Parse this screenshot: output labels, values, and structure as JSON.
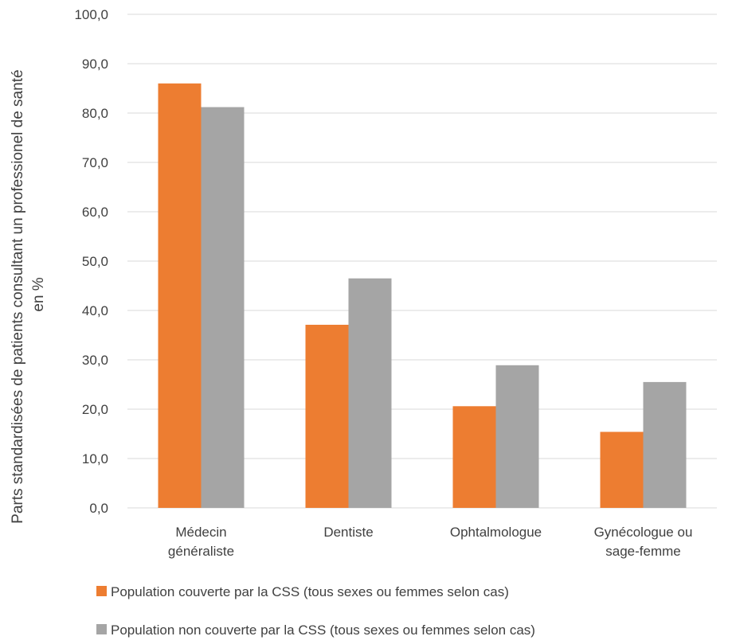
{
  "chart_data": {
    "type": "bar",
    "ylabel_lines": [
      "Parts standardisées de patients consultant un professionel de santé",
      "en %"
    ],
    "xlabel": "",
    "ylim": [
      0,
      100
    ],
    "yticks": [
      "0,0",
      "10,0",
      "20,0",
      "30,0",
      "40,0",
      "50,0",
      "60,0",
      "70,0",
      "80,0",
      "90,0",
      "100,0"
    ],
    "categories": [
      [
        "Médecin",
        "généraliste"
      ],
      [
        "Dentiste"
      ],
      [
        "Ophtalmologue"
      ],
      [
        "Gynécologue ou",
        "sage-femme"
      ]
    ],
    "series": [
      {
        "name": "Population couverte par la CSS (tous sexes ou femmes selon cas)",
        "color": "#ED7D31",
        "values": [
          86.0,
          37.1,
          20.6,
          15.4
        ]
      },
      {
        "name": "Population non couverte par la CSS (tous sexes ou femmes selon cas)",
        "color": "#A5A5A5",
        "values": [
          81.2,
          46.5,
          28.9,
          25.5
        ]
      }
    ],
    "grid": true,
    "gridline_color": "#D9D9D9",
    "legend_position": "bottom"
  }
}
